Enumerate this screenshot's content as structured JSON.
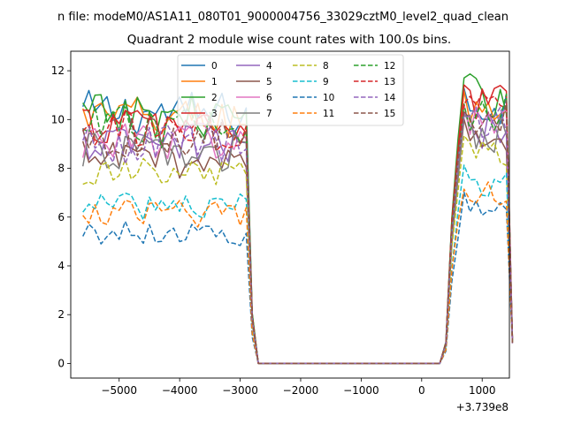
{
  "chart_data": {
    "type": "line",
    "suptitle": "n file: modeM0/AS1A11_080T01_9000004756_33029cztM0_level2_quad_clean",
    "title": "Quadrant 2 module wise count rates with 100.0s bins.",
    "xlabel": "",
    "ylabel": "",
    "x_offset_label": "+3.739e8",
    "xlim": [
      -5800,
      1450
    ],
    "ylim": [
      -0.6,
      12.8
    ],
    "xticks": [
      -5000,
      -4000,
      -3000,
      -2000,
      -1000,
      0,
      1000
    ],
    "xtick_labels": [
      "−5000",
      "−4000",
      "−3000",
      "−2000",
      "−1000",
      "0",
      "1000"
    ],
    "yticks": [
      0,
      2,
      4,
      6,
      8,
      10,
      12
    ],
    "ytick_labels": [
      "0",
      "2",
      "4",
      "6",
      "8",
      "10",
      "12"
    ],
    "legend_position": "top-center",
    "gap": [
      -2700,
      300
    ],
    "series": [
      {
        "name": "0",
        "color": "#1f77b4",
        "style": "solid",
        "level1": 10.3,
        "level2": 10.6
      },
      {
        "name": "1",
        "color": "#ff7f0e",
        "style": "solid",
        "level1": 10.1,
        "level2": 10.5
      },
      {
        "name": "2",
        "color": "#2ca02c",
        "style": "solid",
        "level1": 10.2,
        "level2": 11.0
      },
      {
        "name": "3",
        "color": "#d62728",
        "style": "solid",
        "level1": 9.8,
        "level2": 10.7
      },
      {
        "name": "4",
        "color": "#9467bd",
        "style": "solid",
        "level1": 9.0,
        "level2": 9.6
      },
      {
        "name": "5",
        "color": "#8c564b",
        "style": "solid",
        "level1": 8.4,
        "level2": 9.3
      },
      {
        "name": "6",
        "color": "#e377c2",
        "style": "solid",
        "level1": 9.2,
        "level2": 9.9
      },
      {
        "name": "7",
        "color": "#7f7f7f",
        "style": "solid",
        "level1": 8.7,
        "level2": 9.4
      },
      {
        "name": "8",
        "color": "#bcbd22",
        "style": "dashed",
        "level1": 7.8,
        "level2": 8.6
      },
      {
        "name": "9",
        "color": "#17becf",
        "style": "dashed",
        "level1": 6.5,
        "level2": 7.4
      },
      {
        "name": "10",
        "color": "#1f77b4",
        "style": "dashed",
        "level1": 5.4,
        "level2": 6.3
      },
      {
        "name": "11",
        "color": "#ff7f0e",
        "style": "dashed",
        "level1": 6.2,
        "level2": 7.0
      },
      {
        "name": "12",
        "color": "#2ca02c",
        "style": "dashed",
        "level1": 9.7,
        "level2": 10.4
      },
      {
        "name": "13",
        "color": "#d62728",
        "style": "dashed",
        "level1": 9.5,
        "level2": 10.4
      },
      {
        "name": "14",
        "color": "#9467bd",
        "style": "dashed",
        "level1": 9.0,
        "level2": 9.9
      },
      {
        "name": "15",
        "color": "#8c564b",
        "style": "dashed",
        "level1": 9.3,
        "level2": 10.1
      }
    ]
  }
}
